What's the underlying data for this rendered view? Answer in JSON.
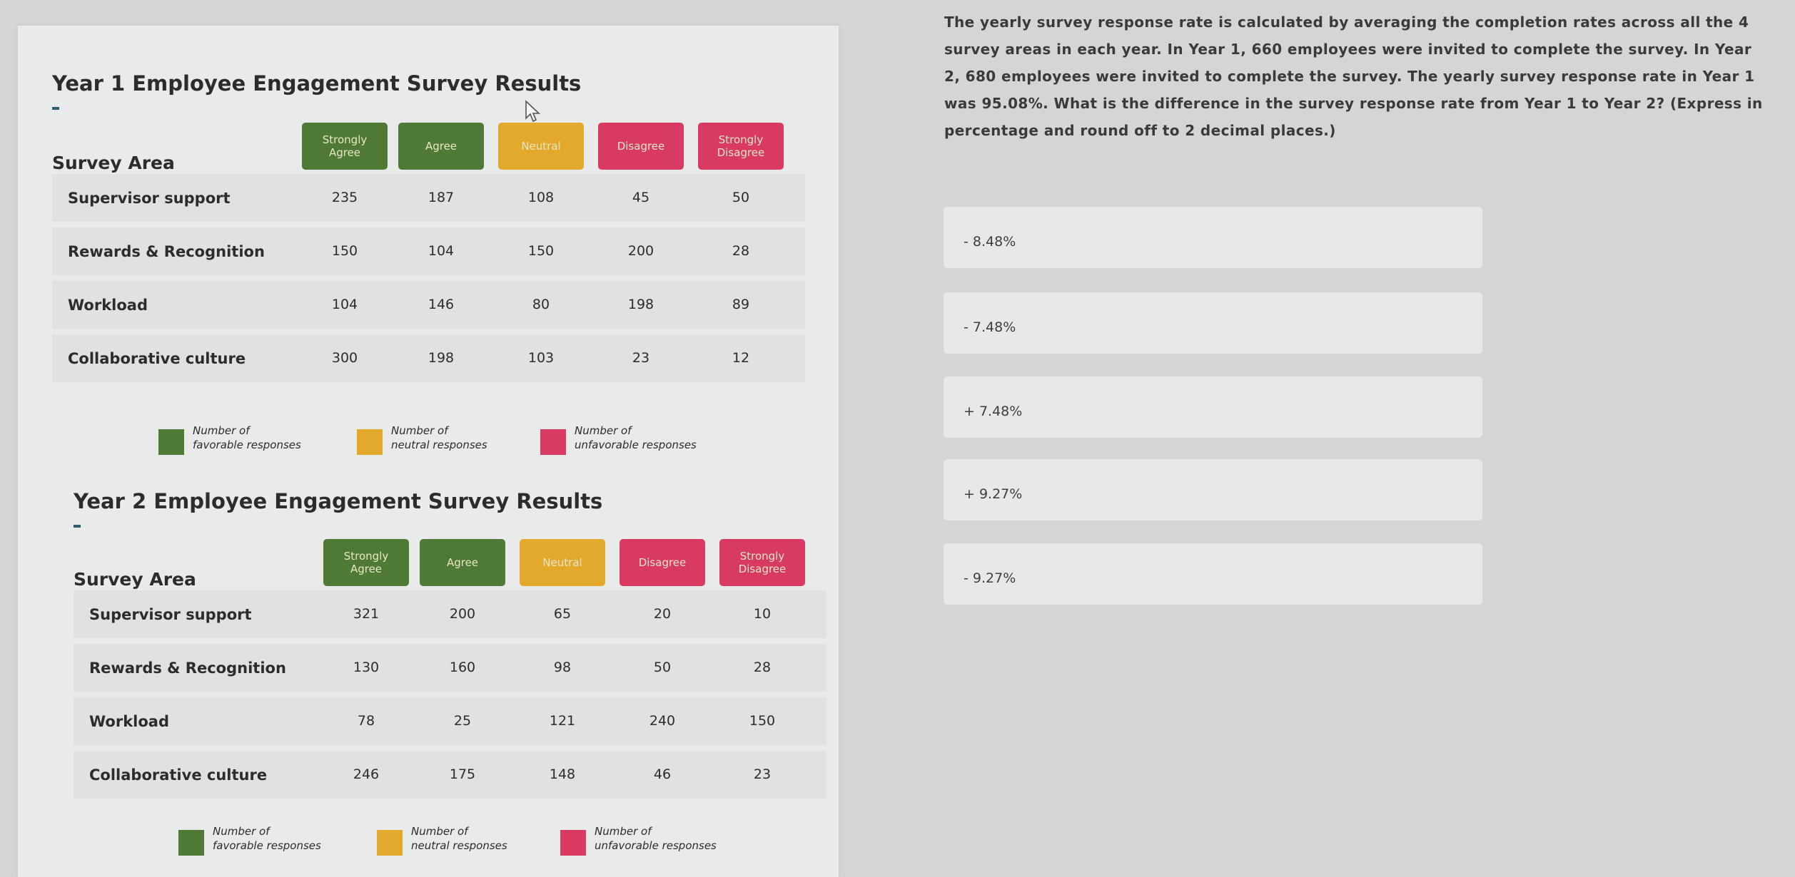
{
  "colors": {
    "favorable": "#4f7a36",
    "neutral": "#e3a92c",
    "unfavorable": "#d83a62"
  },
  "columns": [
    {
      "label": "Strongly\nAgree",
      "group": "favorable"
    },
    {
      "label": "Agree",
      "group": "favorable"
    },
    {
      "label": "Neutral",
      "group": "neutral"
    },
    {
      "label": "Disagree",
      "group": "unfavorable"
    },
    {
      "label": "Strongly\nDisagree",
      "group": "unfavorable"
    }
  ],
  "survey_area_header": "Survey Area",
  "legend": {
    "favorable": [
      "Number of",
      "favorable responses"
    ],
    "neutral": [
      "Number of",
      "neutral responses"
    ],
    "unfavorable": [
      "Number of",
      "unfavorable responses"
    ]
  },
  "year1": {
    "title": "Year 1 Employee Engagement Survey Results",
    "rows": [
      {
        "area": "Supervisor support",
        "values": [
          "235",
          "187",
          "108",
          "45",
          "50"
        ]
      },
      {
        "area": "Rewards & Recognition",
        "values": [
          "150",
          "104",
          "150",
          "200",
          "28"
        ]
      },
      {
        "area": "Workload",
        "values": [
          "104",
          "146",
          "80",
          "198",
          "89"
        ]
      },
      {
        "area": "Collaborative culture",
        "values": [
          "300",
          "198",
          "103",
          "23",
          "12"
        ]
      }
    ]
  },
  "year2": {
    "title": "Year 2 Employee Engagement Survey Results",
    "rows": [
      {
        "area": "Supervisor support",
        "values": [
          "321",
          "200",
          "65",
          "20",
          "10"
        ]
      },
      {
        "area": "Rewards & Recognition",
        "values": [
          "130",
          "160",
          "98",
          "50",
          "28"
        ]
      },
      {
        "area": "Workload",
        "values": [
          "78",
          "25",
          "121",
          "240",
          "150"
        ]
      },
      {
        "area": "Collaborative culture",
        "values": [
          "246",
          "175",
          "148",
          "46",
          "23"
        ]
      }
    ]
  },
  "question": "The yearly survey response rate is calculated by averaging the completion rates across all the 4 survey areas in each year. In Year 1, 660 employees were invited to complete the survey. In Year 2, 680 employees were invited to complete the survey. The yearly survey response rate in Year 1 was 95.08%. What is the difference in the survey response rate from Year 1 to Year 2? (Express in percentage and round off to 2 decimal places.)",
  "options": [
    "- 8.48%",
    "- 7.48%",
    "+ 7.48%",
    "+ 9.27%",
    "- 9.27%"
  ]
}
